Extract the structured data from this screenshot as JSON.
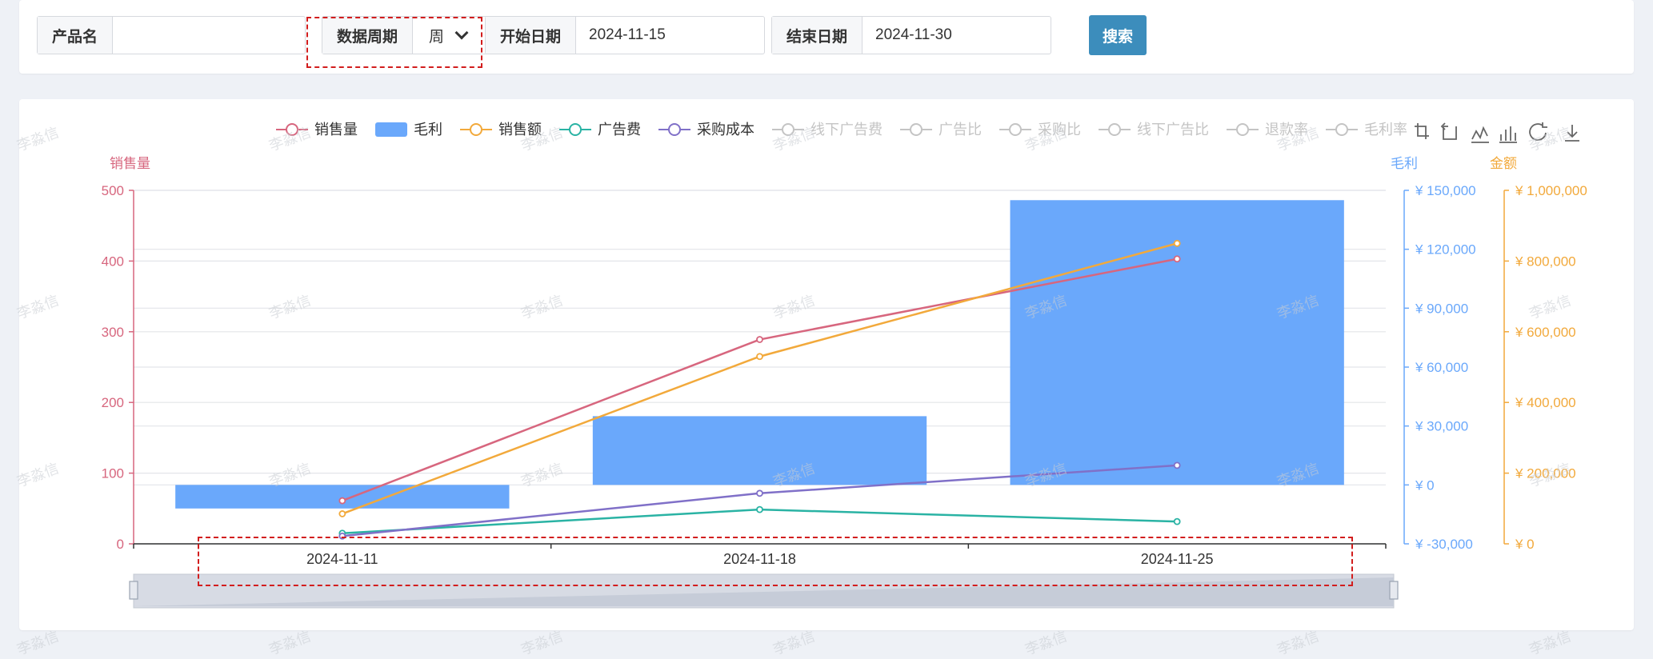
{
  "filters": {
    "product_label": "产品名",
    "product_value": "",
    "period_label": "数据周期",
    "period_value": "周",
    "start_label": "开始日期",
    "start_value": "2024-11-15",
    "end_label": "结束日期",
    "end_value": "2024-11-30",
    "search_label": "搜索"
  },
  "watermark": "李淼信",
  "colors": {
    "sales": "#d7667e",
    "profit": "#6aa8fb",
    "revenue": "#f2a93b",
    "ad": "#2ab3a4",
    "purchase": "#8070c8",
    "inactive": "#c4c4c4",
    "axis_sales": "#d7667e",
    "axis_profit": "#6aa8fb",
    "axis_amount": "#f2a93b"
  },
  "legend": [
    {
      "name": "销售量",
      "icon": "line-circle",
      "active": true,
      "color": "#d7667e"
    },
    {
      "name": "毛利",
      "icon": "rect",
      "active": true,
      "color": "#6aa8fb"
    },
    {
      "name": "销售额",
      "icon": "line-circle",
      "active": true,
      "color": "#f2a93b"
    },
    {
      "name": "广告费",
      "icon": "line-circle",
      "active": true,
      "color": "#2ab3a4"
    },
    {
      "name": "采购成本",
      "icon": "line-circle",
      "active": true,
      "color": "#8070c8"
    },
    {
      "name": "线下广告费",
      "icon": "line-circle",
      "active": false,
      "color": "#c4c4c4"
    },
    {
      "name": "广告比",
      "icon": "line-circle",
      "active": false,
      "color": "#c4c4c4"
    },
    {
      "name": "采购比",
      "icon": "line-circle",
      "active": false,
      "color": "#c4c4c4"
    },
    {
      "name": "线下广告比",
      "icon": "line-circle",
      "active": false,
      "color": "#c4c4c4"
    },
    {
      "name": "退款率",
      "icon": "line-circle",
      "active": false,
      "color": "#c4c4c4"
    },
    {
      "name": "毛利率",
      "icon": "line-circle",
      "active": false,
      "color": "#c4c4c4"
    }
  ],
  "toolbox": [
    "zoom-icon",
    "zoom-reset-icon",
    "line-chart-icon",
    "bar-chart-icon",
    "restore-icon",
    "download-icon"
  ],
  "chart_data": {
    "type": "bar",
    "categories": [
      "2024-11-11",
      "2024-11-18",
      "2024-11-25"
    ],
    "axes": {
      "left": {
        "name": "销售量",
        "min": 0,
        "max": 500,
        "ticks": [
          0,
          100,
          200,
          300,
          400,
          500
        ],
        "tick_labels": [
          "0",
          "100",
          "200",
          "300",
          "400",
          "500"
        ]
      },
      "right1": {
        "name": "毛利",
        "min": -30000,
        "max": 150000,
        "ticks": [
          -30000,
          0,
          30000,
          60000,
          90000,
          120000,
          150000
        ],
        "tick_labels": [
          "¥ -30,000",
          "¥ 0",
          "¥ 30,000",
          "¥ 60,000",
          "¥ 90,000",
          "¥ 120,000",
          "¥ 150,000"
        ]
      },
      "right2": {
        "name": "金额",
        "min": 0,
        "max": 1000000,
        "ticks": [
          0,
          200000,
          400000,
          600000,
          800000,
          1000000
        ],
        "tick_labels": [
          "¥ 0",
          "¥ 200,000",
          "¥ 400,000",
          "¥ 600,000",
          "¥ 800,000",
          "¥ 1,000,000"
        ]
      }
    },
    "series": [
      {
        "name": "毛利",
        "type": "bar",
        "axis": "right1",
        "values": [
          -12000,
          35000,
          145000
        ]
      },
      {
        "name": "销售量",
        "type": "line",
        "axis": "left",
        "values": [
          61,
          289,
          403
        ]
      },
      {
        "name": "销售额",
        "type": "line",
        "axis": "right2",
        "values": [
          85000,
          530000,
          850000
        ]
      },
      {
        "name": "广告费",
        "type": "line",
        "axis": "right2",
        "values": [
          30000,
          97000,
          63000
        ]
      },
      {
        "name": "采购成本",
        "type": "line",
        "axis": "right2",
        "values": [
          22000,
          143000,
          222000
        ]
      }
    ],
    "grid": true,
    "legend_position": "top",
    "data_zoom": true
  }
}
